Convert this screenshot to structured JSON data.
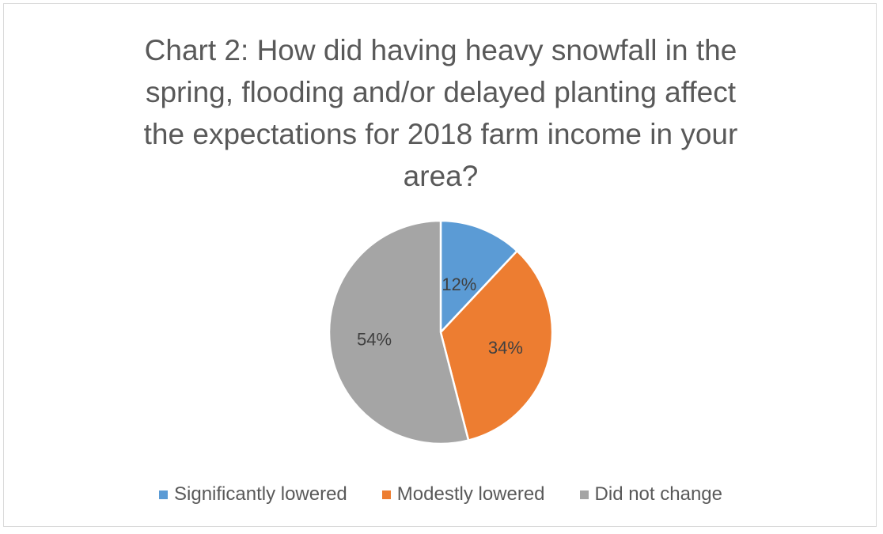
{
  "chart_data": {
    "type": "pie",
    "title": "Chart 2: How did having heavy snowfall in the spring, flooding and/or delayed planting affect the expectations for 2018 farm income in your area?",
    "title_lines": [
      "Chart 2: How did having heavy snowfall in the",
      "spring, flooding and/or delayed planting affect",
      "the expectations for 2018 farm income in your",
      "area?"
    ],
    "categories": [
      "Significantly lowered",
      "Modestly lowered",
      "Did not change"
    ],
    "values": [
      12,
      34,
      54
    ],
    "labels": [
      "12%",
      "34%",
      "54%"
    ],
    "colors": [
      "#5B9BD5",
      "#ED7D31",
      "#A5A5A5"
    ],
    "legend_position": "bottom",
    "start_angle": "12 o'clock",
    "direction": "clockwise"
  }
}
